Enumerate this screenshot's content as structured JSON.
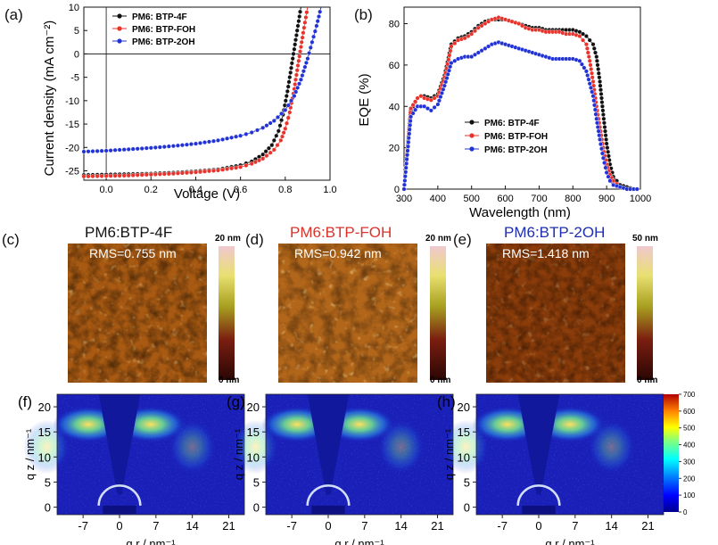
{
  "panels": {
    "a": {
      "label": "(a)",
      "xlabel": "Voltage (V)",
      "ylabel": "Current density  (mA cm⁻²)",
      "xticks": [
        "0.0",
        "0.2",
        "0.4",
        "0.6",
        "0.8",
        "1.0"
      ],
      "yticks": [
        "10",
        "5",
        "0",
        "-5",
        "-10",
        "-15",
        "-20",
        "-25"
      ],
      "legend": [
        "PM6: BTP-4F",
        "PM6: BTP-FOH",
        "PM6: BTP-2OH"
      ]
    },
    "b": {
      "label": "(b)",
      "xlabel": "Wavelength (nm)",
      "ylabel": "EQE (%)",
      "xticks": [
        "300",
        "400",
        "500",
        "600",
        "700",
        "800",
        "900",
        "1000"
      ],
      "yticks": [
        "0",
        "20",
        "40",
        "60",
        "80"
      ],
      "legend": [
        "PM6: BTP-4F",
        "PM6: BTP-FOH",
        "PM6: BTP-2OH"
      ]
    },
    "c": {
      "label": "(c)",
      "title": "PM6:BTP-4F",
      "title_color": "#111111",
      "rms": "RMS=0.755 nm",
      "cbar_top": "20 nm",
      "cbar_bottom": "0 nm"
    },
    "d": {
      "label": "(d)",
      "title": "PM6:BTP-FOH",
      "title_color": "#d9332b",
      "rms": "RMS=0.942 nm",
      "cbar_top": "20 nm",
      "cbar_bottom": "0 nm"
    },
    "e": {
      "label": "(e)",
      "title": "PM6:BTP-2OH",
      "title_color": "#1f2fb0",
      "rms": "RMS=1.418 nm",
      "cbar_top": "50 nm",
      "cbar_bottom": "0 nm"
    },
    "f": {
      "label": "(f)"
    },
    "g": {
      "label": "(g)"
    },
    "h": {
      "label": "(h)"
    },
    "giwaxs": {
      "xlabel": "q r / nm⁻¹",
      "ylabel": "q z / nm⁻¹",
      "xticks": [
        "-7",
        "0",
        "7",
        "14",
        "21"
      ],
      "yticks": [
        "0",
        "5",
        "10",
        "15",
        "20"
      ],
      "colorbar_ticks": [
        "700",
        "600",
        "500",
        "400",
        "300",
        "200",
        "100",
        "0"
      ]
    }
  },
  "colors": {
    "btp_4f": "#111111",
    "btp_foh": "#e8322a",
    "btp_2oh": "#2233d6"
  },
  "chart_data": [
    {
      "type": "line",
      "panel": "a",
      "xlabel": "Voltage (V)",
      "ylabel": "Current density  (mA cm⁻²)",
      "xlim": [
        -0.1,
        1.0
      ],
      "ylim": [
        -27,
        10
      ],
      "series": [
        {
          "name": "PM6: BTP-4F",
          "color": "#111111",
          "x": [
            -0.1,
            0.0,
            0.1,
            0.2,
            0.3,
            0.4,
            0.5,
            0.6,
            0.65,
            0.7,
            0.74,
            0.77,
            0.79,
            0.81,
            0.83,
            0.85,
            0.87
          ],
          "y": [
            -25.9,
            -25.8,
            -25.7,
            -25.6,
            -25.4,
            -25.1,
            -24.7,
            -23.8,
            -23.0,
            -21.5,
            -19.5,
            -16.5,
            -13.0,
            -8.0,
            -2.0,
            4.0,
            10.0
          ]
        },
        {
          "name": "PM6: BTP-FOH",
          "color": "#e8322a",
          "x": [
            -0.1,
            0.0,
            0.1,
            0.2,
            0.3,
            0.4,
            0.5,
            0.6,
            0.65,
            0.7,
            0.75,
            0.78,
            0.8,
            0.82,
            0.84,
            0.86,
            0.88,
            0.9
          ],
          "y": [
            -26.2,
            -26.1,
            -26.0,
            -25.8,
            -25.6,
            -25.3,
            -24.9,
            -24.2,
            -23.5,
            -22.4,
            -20.5,
            -18.5,
            -16.0,
            -12.5,
            -7.5,
            -1.5,
            4.5,
            10.0
          ]
        },
        {
          "name": "PM6: BTP-2OH",
          "color": "#2233d6",
          "x": [
            -0.1,
            0.0,
            0.1,
            0.2,
            0.3,
            0.4,
            0.5,
            0.6,
            0.65,
            0.7,
            0.75,
            0.8,
            0.84,
            0.87,
            0.9,
            0.92,
            0.94,
            0.96
          ],
          "y": [
            -20.9,
            -20.7,
            -20.4,
            -20.1,
            -19.7,
            -19.2,
            -18.5,
            -17.5,
            -16.8,
            -15.8,
            -14.3,
            -12.0,
            -9.0,
            -5.5,
            -1.0,
            2.5,
            6.0,
            10.0
          ]
        }
      ]
    },
    {
      "type": "line",
      "panel": "b",
      "xlabel": "Wavelength (nm)",
      "ylabel": "EQE (%)",
      "xlim": [
        300,
        1000
      ],
      "ylim": [
        0,
        88
      ],
      "series": [
        {
          "name": "PM6: BTP-4F",
          "color": "#111111",
          "x": [
            300,
            320,
            340,
            350,
            360,
            380,
            400,
            420,
            440,
            460,
            480,
            500,
            520,
            540,
            560,
            580,
            600,
            620,
            640,
            660,
            680,
            700,
            720,
            740,
            760,
            780,
            800,
            820,
            840,
            860,
            870,
            880,
            890,
            900,
            910,
            920,
            940,
            960,
            980,
            1000
          ],
          "y": [
            0,
            38,
            44,
            45,
            45,
            44,
            46,
            55,
            70,
            73,
            74,
            76,
            79,
            81,
            82,
            82,
            82,
            81,
            80,
            79,
            78,
            78,
            77,
            77,
            77,
            77,
            77,
            76,
            74,
            70,
            64,
            52,
            36,
            22,
            12,
            6,
            2,
            1,
            0,
            0
          ]
        },
        {
          "name": "PM6: BTP-FOH",
          "color": "#e8322a",
          "x": [
            300,
            320,
            340,
            350,
            360,
            380,
            400,
            420,
            440,
            460,
            480,
            500,
            520,
            540,
            560,
            580,
            600,
            620,
            640,
            660,
            680,
            700,
            720,
            740,
            760,
            780,
            800,
            820,
            840,
            850,
            860,
            870,
            880,
            890,
            900,
            910,
            920,
            940,
            960,
            980,
            1000
          ],
          "y": [
            0,
            39,
            44,
            45,
            44,
            43,
            45,
            54,
            69,
            72,
            73,
            75,
            78,
            80,
            82,
            83,
            82,
            81,
            80,
            78,
            77,
            77,
            76,
            76,
            76,
            75,
            75,
            74,
            70,
            62,
            52,
            40,
            30,
            20,
            12,
            7,
            4,
            1,
            0,
            0,
            0
          ]
        },
        {
          "name": "PM6: BTP-2OH",
          "color": "#2233d6",
          "x": [
            300,
            320,
            340,
            350,
            360,
            380,
            400,
            420,
            440,
            460,
            480,
            500,
            520,
            540,
            560,
            580,
            600,
            620,
            640,
            660,
            680,
            700,
            720,
            740,
            760,
            780,
            800,
            820,
            840,
            860,
            870,
            880,
            890,
            900,
            910,
            920,
            940,
            960,
            980,
            1000
          ],
          "y": [
            0,
            35,
            40,
            40,
            40,
            38,
            41,
            50,
            61,
            63,
            64,
            64,
            66,
            68,
            70,
            71,
            70,
            69,
            68,
            67,
            66,
            65,
            64,
            63,
            63,
            63,
            63,
            62,
            57,
            45,
            34,
            24,
            15,
            8,
            4,
            2,
            1,
            0,
            0,
            0
          ]
        }
      ]
    }
  ]
}
